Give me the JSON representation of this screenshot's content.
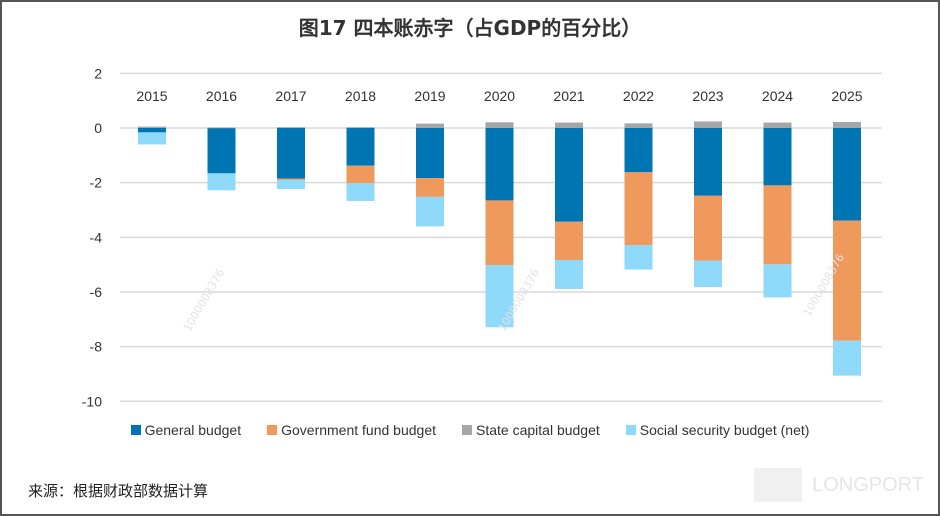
{
  "title": "图17 四本账赤字（占GDP的百分比）",
  "source": "来源：根据财政部数据计算",
  "watermark_logo": "LONGPORT",
  "watermark_id": "1000008376",
  "chart_data": {
    "type": "bar",
    "stacked": true,
    "title": "图17 四本账赤字（占GDP的百分比）",
    "categories": [
      "2015",
      "2016",
      "2017",
      "2018",
      "2019",
      "2020",
      "2021",
      "2022",
      "2023",
      "2024",
      "2025"
    ],
    "series": [
      {
        "name": "General budget",
        "color": "#0075b4",
        "values": [
          -0.16,
          -1.66,
          -1.85,
          -1.38,
          -1.83,
          -2.65,
          -3.43,
          -1.62,
          -2.48,
          -2.1,
          -3.39
        ]
      },
      {
        "name": "Government fund budget",
        "color": "#ef995c",
        "values": [
          0,
          0,
          -0.05,
          -0.64,
          -0.69,
          -2.37,
          -1.4,
          -2.66,
          -2.37,
          -2.89,
          -4.39
        ]
      },
      {
        "name": "State capital budget",
        "color": "#a6a6a6",
        "values": [
          0.05,
          0.02,
          0.03,
          0.03,
          0.16,
          0.21,
          0.2,
          0.17,
          0.24,
          0.2,
          0.22
        ]
      },
      {
        "name": "Social security budget (net)",
        "color": "#8fd9fb",
        "values": [
          -0.44,
          -0.62,
          -0.33,
          -0.65,
          -1.08,
          -2.27,
          -1.06,
          -0.9,
          -0.97,
          -1.21,
          -1.28
        ]
      }
    ],
    "ylim": [
      -10,
      2
    ],
    "yticks": [
      "2",
      "0",
      "-2",
      "-4",
      "-6",
      "-8",
      "-10"
    ],
    "grid": true,
    "legend": "bottom",
    "xlabel": "",
    "ylabel": ""
  }
}
